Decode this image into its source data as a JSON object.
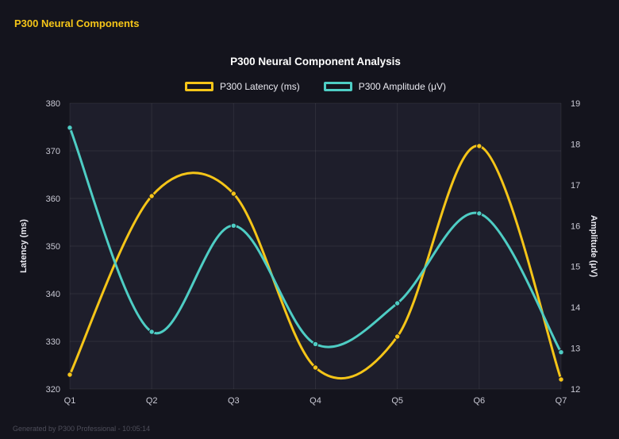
{
  "page": {
    "title": "P300 Neural Components",
    "footer": "Generated by P300 Professional - 10:05:14",
    "colors": {
      "background": "#14141d",
      "plot_background": "#1e1e2b",
      "grid": "rgba(255,255,255,0.07)",
      "tick_text": "#c9c9d4",
      "title_text": "#ffffff",
      "accent_yellow": "#f5c518",
      "accent_teal": "#4ecdc4",
      "footer_text": "#4e4e5a"
    }
  },
  "chart_data": {
    "type": "line",
    "title": "P300 Neural Component Analysis",
    "categories": [
      "Q1",
      "Q2",
      "Q3",
      "Q4",
      "Q5",
      "Q6",
      "Q7"
    ],
    "series": [
      {
        "name": "P300 Latency (ms)",
        "axis": "left",
        "color": "#f5c518",
        "values": [
          323,
          360.5,
          361,
          324.5,
          331,
          371,
          322
        ]
      },
      {
        "name": "P300 Amplitude (μV)",
        "axis": "right",
        "color": "#4ecdc4",
        "values": [
          18.4,
          13.4,
          16.0,
          13.1,
          14.1,
          16.3,
          12.9
        ]
      }
    ],
    "ylabel_left": "Latency (ms)",
    "ylabel_right": "Amplitude (μV)",
    "yleft": {
      "min": 320,
      "max": 380,
      "step": 10
    },
    "yright": {
      "min": 12,
      "max": 19,
      "step": 1
    },
    "legend_position": "top",
    "grid": true,
    "smooth": true
  }
}
